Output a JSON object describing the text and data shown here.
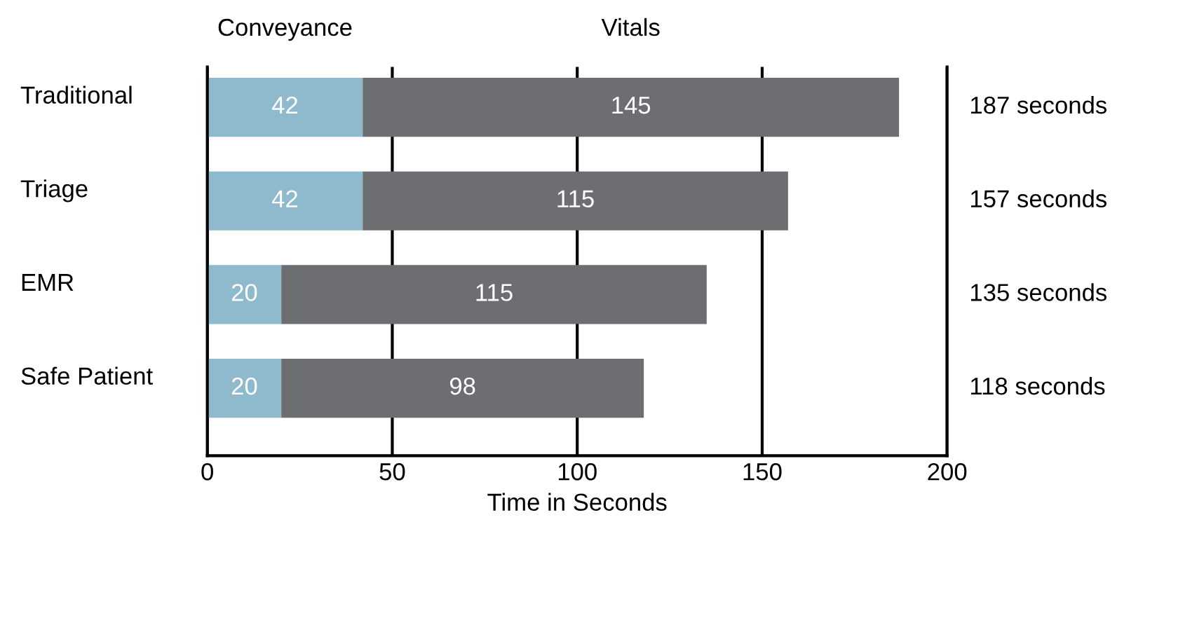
{
  "chart_data": {
    "type": "bar",
    "orientation": "horizontal",
    "stacked": true,
    "categories": [
      "Traditional",
      "Triage",
      "EMR",
      "Safe Patient"
    ],
    "series": [
      {
        "name": "Conveyance",
        "color": "#8fb9cc",
        "values": [
          42,
          42,
          20,
          20
        ]
      },
      {
        "name": "Vitals",
        "color": "#6d6e71",
        "values": [
          145,
          115,
          115,
          98
        ]
      }
    ],
    "xlabel": "Time in Seconds",
    "xlim": [
      0,
      200
    ],
    "xticks": [
      0,
      50,
      100,
      150,
      200
    ],
    "grid": "x",
    "data_labels": true,
    "annotations": [
      "187 seconds",
      "157 seconds",
      "135 seconds",
      "118 seconds"
    ]
  }
}
